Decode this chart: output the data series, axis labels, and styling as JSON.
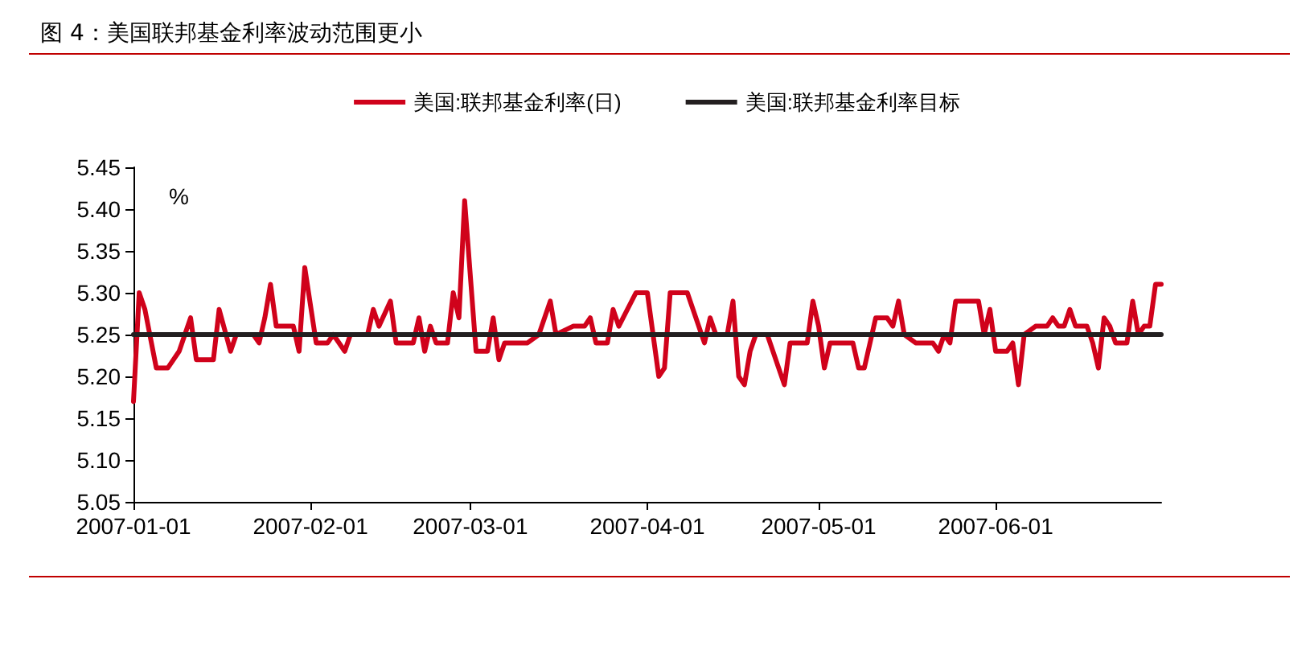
{
  "chart_data": {
    "type": "line",
    "title": "图 4：美国联邦基金利率波动范围更小",
    "ylabel": "%",
    "legend": "top",
    "grid": false,
    "marker": "none",
    "line_style": "solid",
    "xlim": [
      "2007-01-01",
      "2007-06-30"
    ],
    "xticks": [
      "2007-01-01",
      "2007-02-01",
      "2007-03-01",
      "2007-04-01",
      "2007-05-01",
      "2007-06-01"
    ],
    "ylim": [
      5.05,
      5.45
    ],
    "yticks": [
      5.05,
      {
        "value": 5.1,
        "label": "5.10"
      },
      5.15,
      {
        "value": 5.2,
        "label": "5.20"
      },
      5.25,
      {
        "value": 5.3,
        "label": "5.30"
      },
      5.35,
      {
        "value": 5.4,
        "label": "5.40"
      },
      5.45
    ],
    "series": [
      {
        "name": "美国:联邦基金利率(日)",
        "color": "#d0021b",
        "x": [
          "2007-01-01",
          "2007-01-02",
          "2007-01-03",
          "2007-01-05",
          "2007-01-07",
          "2007-01-09",
          "2007-01-10",
          "2007-01-11",
          "2007-01-12",
          "2007-01-15",
          "2007-01-16",
          "2007-01-18",
          "2007-01-19",
          "2007-01-22",
          "2007-01-23",
          "2007-01-24",
          "2007-01-25",
          "2007-01-26",
          "2007-01-29",
          "2007-01-30",
          "2007-01-31",
          "2007-02-02",
          "2007-02-04",
          "2007-02-05",
          "2007-02-07",
          "2007-02-08",
          "2007-02-11",
          "2007-02-12",
          "2007-02-13",
          "2007-02-15",
          "2007-02-16",
          "2007-02-19",
          "2007-02-20",
          "2007-02-21",
          "2007-02-22",
          "2007-02-23",
          "2007-02-25",
          "2007-02-26",
          "2007-02-27",
          "2007-02-28",
          "2007-03-02",
          "2007-03-04",
          "2007-03-05",
          "2007-03-06",
          "2007-03-07",
          "2007-03-11",
          "2007-03-13",
          "2007-03-15",
          "2007-03-16",
          "2007-03-19",
          "2007-03-21",
          "2007-03-22",
          "2007-03-23",
          "2007-03-25",
          "2007-03-26",
          "2007-03-27",
          "2007-03-30",
          "2007-04-01",
          "2007-04-03",
          "2007-04-04",
          "2007-04-05",
          "2007-04-08",
          "2007-04-11",
          "2007-04-12",
          "2007-04-13",
          "2007-04-15",
          "2007-04-16",
          "2007-04-17",
          "2007-04-18",
          "2007-04-19",
          "2007-04-20",
          "2007-04-22",
          "2007-04-24",
          "2007-04-25",
          "2007-04-26",
          "2007-04-29",
          "2007-04-30",
          "2007-05-01",
          "2007-05-02",
          "2007-05-03",
          "2007-05-07",
          "2007-05-08",
          "2007-05-09",
          "2007-05-11",
          "2007-05-13",
          "2007-05-14",
          "2007-05-15",
          "2007-05-16",
          "2007-05-18",
          "2007-05-21",
          "2007-05-22",
          "2007-05-23",
          "2007-05-24",
          "2007-05-25",
          "2007-05-29",
          "2007-05-30",
          "2007-05-31",
          "2007-06-01",
          "2007-06-03",
          "2007-06-04",
          "2007-06-05",
          "2007-06-06",
          "2007-06-08",
          "2007-06-10",
          "2007-06-11",
          "2007-06-12",
          "2007-06-13",
          "2007-06-14",
          "2007-06-15",
          "2007-06-17",
          "2007-06-18",
          "2007-06-19",
          "2007-06-20",
          "2007-06-21",
          "2007-06-22",
          "2007-06-24",
          "2007-06-25",
          "2007-06-26",
          "2007-06-27",
          "2007-06-28",
          "2007-06-29",
          "2007-06-30"
        ],
        "values": [
          5.17,
          5.3,
          5.28,
          5.21,
          5.21,
          5.23,
          5.25,
          5.27,
          5.22,
          5.22,
          5.28,
          5.23,
          5.25,
          5.25,
          5.24,
          5.27,
          5.31,
          5.26,
          5.26,
          5.23,
          5.33,
          5.24,
          5.24,
          5.25,
          5.23,
          5.25,
          5.25,
          5.28,
          5.26,
          5.29,
          5.24,
          5.24,
          5.27,
          5.23,
          5.26,
          5.24,
          5.24,
          5.3,
          5.27,
          5.41,
          5.23,
          5.23,
          5.27,
          5.22,
          5.24,
          5.24,
          5.25,
          5.29,
          5.25,
          5.26,
          5.26,
          5.27,
          5.24,
          5.24,
          5.28,
          5.26,
          5.3,
          5.3,
          5.2,
          5.21,
          5.3,
          5.3,
          5.24,
          5.27,
          5.25,
          5.25,
          5.29,
          5.2,
          5.19,
          5.23,
          5.25,
          5.25,
          5.21,
          5.19,
          5.24,
          5.24,
          5.29,
          5.26,
          5.21,
          5.24,
          5.24,
          5.21,
          5.21,
          5.27,
          5.27,
          5.26,
          5.29,
          5.25,
          5.24,
          5.24,
          5.23,
          5.25,
          5.24,
          5.29,
          5.29,
          5.25,
          5.28,
          5.23,
          5.23,
          5.24,
          5.19,
          5.25,
          5.26,
          5.26,
          5.27,
          5.26,
          5.26,
          5.28,
          5.26,
          5.26,
          5.24,
          5.21,
          5.27,
          5.26,
          5.24,
          5.24,
          5.29,
          5.25,
          5.26,
          5.26,
          5.31,
          5.31
        ]
      },
      {
        "name": "美国:联邦基金利率目标",
        "color": "#231f20",
        "x": [
          "2007-01-01",
          "2007-06-30"
        ],
        "values": [
          5.25,
          5.25
        ]
      }
    ]
  }
}
